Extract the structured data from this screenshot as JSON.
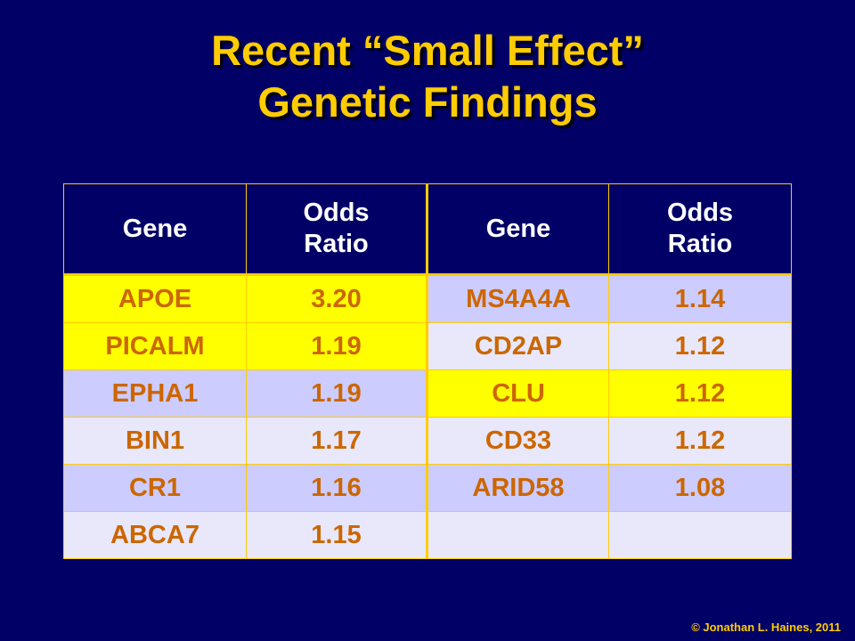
{
  "title": {
    "line1": "Recent “Small Effect”",
    "line2": "Genetic Findings"
  },
  "table": {
    "headers": [
      "Gene",
      "Odds\nRatio",
      "Gene",
      "Odds\nRatio"
    ],
    "header_lines": [
      [
        "Gene"
      ],
      [
        "Odds",
        "Ratio"
      ],
      [
        "Gene"
      ],
      [
        "Odds",
        "Ratio"
      ]
    ],
    "rows": [
      [
        "APOE",
        "3.20",
        "MS4A4A",
        "1.14"
      ],
      [
        "PICALM",
        "1.19",
        "CD2AP",
        "1.12"
      ],
      [
        "EPHA1",
        "1.19",
        "CLU",
        "1.12"
      ],
      [
        "BIN1",
        "1.17",
        "CD33",
        "1.12"
      ],
      [
        "CR1",
        "1.16",
        "ARID58",
        "1.08"
      ],
      [
        "ABCA7",
        "1.15",
        "",
        ""
      ]
    ],
    "highlighted_cells": [
      [
        0,
        0
      ],
      [
        0,
        1
      ],
      [
        1,
        0
      ],
      [
        1,
        1
      ],
      [
        2,
        2
      ],
      [
        2,
        3
      ]
    ]
  },
  "copyright": "© Jonathan L. Haines, 2011",
  "colors": {
    "background": "#000066",
    "title": "#ffcc00",
    "header_text": "#ffffff",
    "cell_text": "#cc6600",
    "highlight": "#ffff00",
    "row_dark": "#ccccff",
    "row_light": "#e8e8fa",
    "border": "#ffcc00"
  }
}
